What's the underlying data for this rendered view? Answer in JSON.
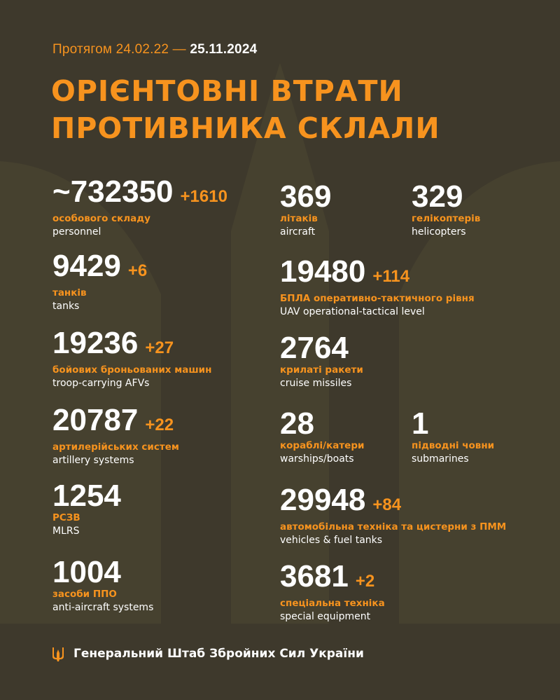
{
  "colors": {
    "background": "#3e392c",
    "accent": "#f7931e",
    "text": "#ffffff"
  },
  "header": {
    "period_prefix": "Протягом 24.02.22 —",
    "period_end": "25.11.2024",
    "title_line1": "ОРІЄНТОВНІ ВТРАТИ",
    "title_line2": "ПРОТИВНИКА СКЛАЛИ"
  },
  "stats": [
    {
      "value": "~732350",
      "delta": "+1610",
      "label_ua": "особового складу",
      "label_en": "personnel"
    },
    {
      "value": "9429",
      "delta": "+6",
      "label_ua": "танків",
      "label_en": "tanks"
    },
    {
      "value": "19236",
      "delta": "+27",
      "label_ua": "бойових броньованих машин",
      "label_en": "troop-carrying AFVs"
    },
    {
      "value": "20787",
      "delta": "+22",
      "label_ua": "артилерійських систем",
      "label_en": "artillery systems"
    },
    {
      "value": "1254",
      "delta": "",
      "label_ua": "РСЗВ",
      "label_en": "MLRS"
    },
    {
      "value": "1004",
      "delta": "",
      "label_ua": "засоби ППО",
      "label_en": "anti-aircraft systems"
    },
    {
      "value": "369",
      "delta": "",
      "label_ua": "літаків",
      "label_en": "aircraft"
    },
    {
      "value": "329",
      "delta": "",
      "label_ua": "гелікоптерів",
      "label_en": "helicopters"
    },
    {
      "value": "19480",
      "delta": "+114",
      "label_ua": "БПЛА оперативно-тактичного рівня",
      "label_en": "UAV operational-tactical level"
    },
    {
      "value": "2764",
      "delta": "",
      "label_ua": "крилаті ракети",
      "label_en": "cruise missiles"
    },
    {
      "value": "28",
      "delta": "",
      "label_ua": "кораблі/катери",
      "label_en": "warships/boats"
    },
    {
      "value": "1",
      "delta": "",
      "label_ua": "підводні човни",
      "label_en": "submarines"
    },
    {
      "value": "29948",
      "delta": "+84",
      "label_ua": "автомобільна техніка та цистерни з ПММ",
      "label_en": "vehicles & fuel tanks"
    },
    {
      "value": "3681",
      "delta": "+2",
      "label_ua": "спеціальна техніка",
      "label_en": "special equipment"
    }
  ],
  "footer": {
    "icon": "trident-icon",
    "text": "Генеральний Штаб Збройних Сил України"
  }
}
